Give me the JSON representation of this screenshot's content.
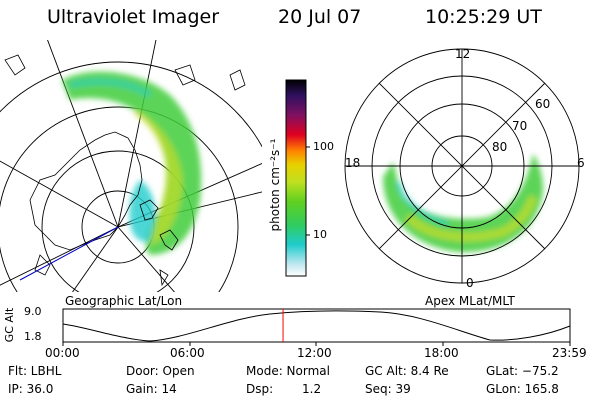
{
  "header": {
    "instrument": "Ultraviolet Imager",
    "date": "20 Jul 07",
    "time": "10:25:29 UT"
  },
  "geo_panel": {
    "caption": "Geographic Lat/Lon"
  },
  "mag_panel": {
    "caption": "Apex MLat/MLT",
    "mlt_labels": [
      "12",
      "18",
      "6",
      "0"
    ],
    "mlat_labels": [
      "60",
      "70",
      "80"
    ]
  },
  "colorbar": {
    "unit_label": "photon cm⁻²s⁻¹",
    "ticks": [
      "100",
      "10"
    ]
  },
  "timeline": {
    "ylabel": "GC Alt",
    "yticks": [
      "9.0",
      "1.8"
    ],
    "xticks": [
      "00:00",
      "06:00",
      "12:00",
      "18:00",
      "23:59"
    ],
    "current_time_fraction": 0.434
  },
  "status": {
    "flt": "Flt: LBHL",
    "ip": "IP: 36.0",
    "door": "Door: Open",
    "gain": "Gain: 14",
    "mode": "Mode: Normal",
    "dsp_label": "Dsp:",
    "dsp_value": "1.2",
    "gc_alt": "GC Alt: 8.4 Re",
    "seq": "Seq: 39",
    "glat": "GLat: −75.2",
    "glon": "GLon: 165.8"
  },
  "colors": {
    "aurora_green": "#44cc33",
    "aurora_cyan": "#22cccc",
    "aurora_yellow": "#ccdd22",
    "time_marker": "#ff0000",
    "track_line": "#0000cc"
  }
}
